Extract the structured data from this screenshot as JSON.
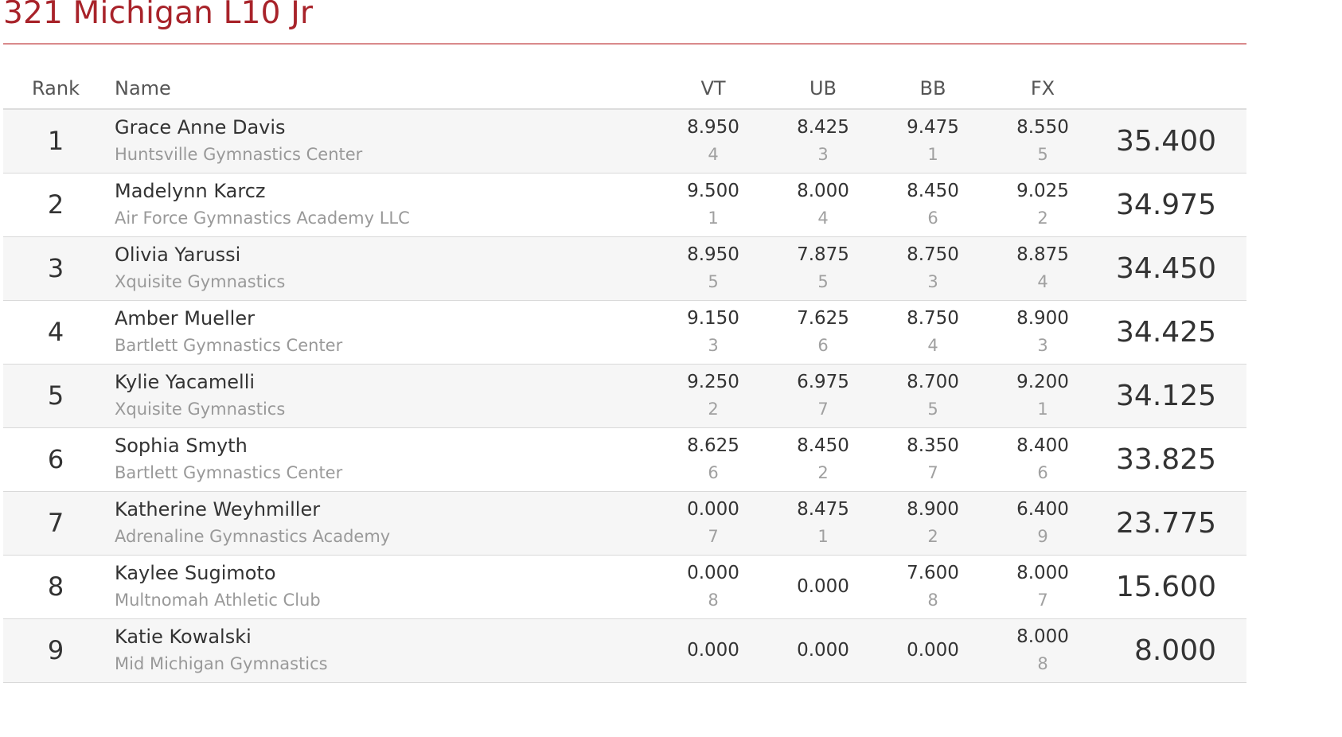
{
  "session": {
    "title": "321 Michigan L10 Jr"
  },
  "columns": {
    "rank": "Rank",
    "name": "Name",
    "vt": "VT",
    "ub": "UB",
    "bb": "BB",
    "fx": "FX"
  },
  "rows": [
    {
      "rank": "1",
      "name": "Grace Anne Davis",
      "club": "Huntsville Gymnastics Center",
      "vt": {
        "score": "8.950",
        "place": "4"
      },
      "ub": {
        "score": "8.425",
        "place": "3"
      },
      "bb": {
        "score": "9.475",
        "place": "1"
      },
      "fx": {
        "score": "8.550",
        "place": "5"
      },
      "aa": "35.400"
    },
    {
      "rank": "2",
      "name": "Madelynn Karcz",
      "club": "Air Force Gymnastics Academy LLC",
      "vt": {
        "score": "9.500",
        "place": "1"
      },
      "ub": {
        "score": "8.000",
        "place": "4"
      },
      "bb": {
        "score": "8.450",
        "place": "6"
      },
      "fx": {
        "score": "9.025",
        "place": "2"
      },
      "aa": "34.975"
    },
    {
      "rank": "3",
      "name": "Olivia Yarussi",
      "club": "Xquisite Gymnastics",
      "vt": {
        "score": "8.950",
        "place": "5"
      },
      "ub": {
        "score": "7.875",
        "place": "5"
      },
      "bb": {
        "score": "8.750",
        "place": "3"
      },
      "fx": {
        "score": "8.875",
        "place": "4"
      },
      "aa": "34.450"
    },
    {
      "rank": "4",
      "name": "Amber Mueller",
      "club": "Bartlett Gymnastics Center",
      "vt": {
        "score": "9.150",
        "place": "3"
      },
      "ub": {
        "score": "7.625",
        "place": "6"
      },
      "bb": {
        "score": "8.750",
        "place": "4"
      },
      "fx": {
        "score": "8.900",
        "place": "3"
      },
      "aa": "34.425"
    },
    {
      "rank": "5",
      "name": "Kylie Yacamelli",
      "club": "Xquisite Gymnastics",
      "vt": {
        "score": "9.250",
        "place": "2"
      },
      "ub": {
        "score": "6.975",
        "place": "7"
      },
      "bb": {
        "score": "8.700",
        "place": "5"
      },
      "fx": {
        "score": "9.200",
        "place": "1"
      },
      "aa": "34.125"
    },
    {
      "rank": "6",
      "name": "Sophia Smyth",
      "club": "Bartlett Gymnastics Center",
      "vt": {
        "score": "8.625",
        "place": "6"
      },
      "ub": {
        "score": "8.450",
        "place": "2"
      },
      "bb": {
        "score": "8.350",
        "place": "7"
      },
      "fx": {
        "score": "8.400",
        "place": "6"
      },
      "aa": "33.825"
    },
    {
      "rank": "7",
      "name": "Katherine Weyhmiller",
      "club": "Adrenaline Gymnastics Academy",
      "vt": {
        "score": "0.000",
        "place": "7"
      },
      "ub": {
        "score": "8.475",
        "place": "1"
      },
      "bb": {
        "score": "8.900",
        "place": "2"
      },
      "fx": {
        "score": "6.400",
        "place": "9"
      },
      "aa": "23.775"
    },
    {
      "rank": "8",
      "name": "Kaylee Sugimoto",
      "club": "Multnomah Athletic Club",
      "vt": {
        "score": "0.000",
        "place": "8"
      },
      "ub": {
        "score": "0.000",
        "place": ""
      },
      "bb": {
        "score": "7.600",
        "place": "8"
      },
      "fx": {
        "score": "8.000",
        "place": "7"
      },
      "aa": "15.600"
    },
    {
      "rank": "9",
      "name": "Katie Kowalski",
      "club": "Mid Michigan Gymnastics",
      "vt": {
        "score": "0.000",
        "place": ""
      },
      "ub": {
        "score": "0.000",
        "place": ""
      },
      "bb": {
        "score": "0.000",
        "place": ""
      },
      "fx": {
        "score": "8.000",
        "place": "8"
      },
      "aa": "8.000"
    }
  ]
}
